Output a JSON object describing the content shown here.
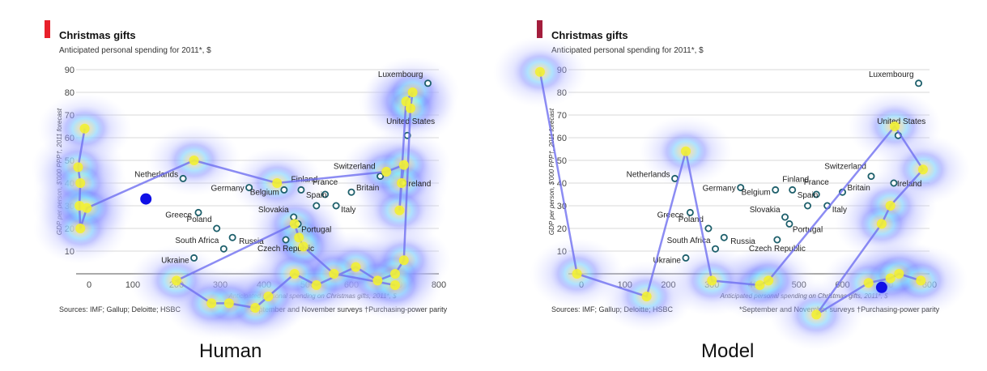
{
  "captions": {
    "left": "Human",
    "right": "Model"
  },
  "colors": {
    "accent_left": "#e8202b",
    "accent_right": "#a31d3c",
    "marker": "#1d5f6b",
    "gaze_line": "#6f6ff0",
    "fixation": "#f2f233",
    "start_dot": "#1010e6",
    "grid": "#d8d8d8"
  },
  "chart_data": [
    {
      "type": "scatter",
      "panel": "Human",
      "title": "Christmas gifts",
      "subtitle": "Anticipated personal spending for 2011*, $",
      "xlabel": "Anticipated personal spending on Christmas gifts, 2011*, $",
      "ylabel": "GDP per person, $'000 PPP†, 2011 forecast",
      "xlim": [
        -20,
        830
      ],
      "ylim": [
        -5,
        95
      ],
      "x_ticks": [
        0,
        100,
        200,
        300,
        400,
        500,
        600,
        700,
        800
      ],
      "y_ticks": [
        10,
        20,
        30,
        40,
        50,
        60,
        70,
        80,
        90
      ],
      "source": "Sources: IMF; Gallup; Deloitte; HSBC",
      "footnote": "*September and November surveys   †Purchasing-power parity",
      "points": [
        {
          "label": "Luxembourg",
          "x": 775,
          "y": 84
        },
        {
          "label": "United States",
          "x": 728,
          "y": 61
        },
        {
          "label": "Switzerland",
          "x": 666,
          "y": 43
        },
        {
          "label": "Ireland",
          "x": 718,
          "y": 40
        },
        {
          "label": "Netherlands",
          "x": 215,
          "y": 42
        },
        {
          "label": "Finland",
          "x": 485,
          "y": 37
        },
        {
          "label": "France",
          "x": 540,
          "y": 35
        },
        {
          "label": "Britain",
          "x": 600,
          "y": 36
        },
        {
          "label": "Germany",
          "x": 366,
          "y": 38
        },
        {
          "label": "Belgium",
          "x": 446,
          "y": 37
        },
        {
          "label": "Spain",
          "x": 520,
          "y": 30
        },
        {
          "label": "Italy",
          "x": 565,
          "y": 30
        },
        {
          "label": "Greece",
          "x": 250,
          "y": 27
        },
        {
          "label": "Slovakia",
          "x": 468,
          "y": 25
        },
        {
          "label": "Portugal",
          "x": 478,
          "y": 22
        },
        {
          "label": "Poland",
          "x": 292,
          "y": 20
        },
        {
          "label": "Russia",
          "x": 328,
          "y": 16
        },
        {
          "label": "Czech Republic",
          "x": 450,
          "y": 15
        },
        {
          "label": "South Africa",
          "x": 308,
          "y": 11
        },
        {
          "label": "Ukraine",
          "x": 240,
          "y": 7
        }
      ]
    },
    {
      "type": "scatter",
      "panel": "Model",
      "title": "Christmas gifts",
      "subtitle": "Anticipated personal spending for 2011*, $",
      "xlabel": "Anticipated personal spending on Christmas gifts, 2011*, $",
      "ylabel": "GDP per person, $'000 PPP†, 2011 forecast",
      "xlim": [
        -20,
        830
      ],
      "ylim": [
        -5,
        95
      ],
      "x_ticks": [
        0,
        100,
        200,
        300,
        400,
        500,
        600,
        700,
        800
      ],
      "y_ticks": [
        10,
        20,
        30,
        40,
        50,
        60,
        70,
        80,
        90
      ],
      "source": "Sources: IMF; Gallup; Deloitte; HSBC",
      "footnote": "*September and November surveys   †Purchasing-power parity",
      "points": [
        {
          "label": "Luxembourg",
          "x": 775,
          "y": 84
        },
        {
          "label": "United States",
          "x": 728,
          "y": 61
        },
        {
          "label": "Switzerland",
          "x": 666,
          "y": 43
        },
        {
          "label": "Ireland",
          "x": 718,
          "y": 40
        },
        {
          "label": "Netherlands",
          "x": 215,
          "y": 42
        },
        {
          "label": "Finland",
          "x": 485,
          "y": 37
        },
        {
          "label": "France",
          "x": 540,
          "y": 35
        },
        {
          "label": "Britain",
          "x": 600,
          "y": 36
        },
        {
          "label": "Germany",
          "x": 366,
          "y": 38
        },
        {
          "label": "Belgium",
          "x": 446,
          "y": 37
        },
        {
          "label": "Spain",
          "x": 520,
          "y": 30
        },
        {
          "label": "Italy",
          "x": 565,
          "y": 30
        },
        {
          "label": "Greece",
          "x": 250,
          "y": 27
        },
        {
          "label": "Slovakia",
          "x": 468,
          "y": 25
        },
        {
          "label": "Portugal",
          "x": 478,
          "y": 22
        },
        {
          "label": "Poland",
          "x": 292,
          "y": 20
        },
        {
          "label": "Russia",
          "x": 328,
          "y": 16
        },
        {
          "label": "Czech Republic",
          "x": 450,
          "y": 15
        },
        {
          "label": "South Africa",
          "x": 308,
          "y": 11
        },
        {
          "label": "Ukraine",
          "x": 240,
          "y": 7
        }
      ]
    }
  ],
  "gaze": {
    "human": {
      "fixations": [
        [
          -10,
          64
        ],
        [
          -25,
          47
        ],
        [
          -20,
          40
        ],
        [
          -22,
          30
        ],
        [
          -20,
          20
        ],
        [
          -5,
          29
        ],
        [
          240,
          50
        ],
        [
          430,
          40
        ],
        [
          680,
          45
        ],
        [
          720,
          48
        ],
        [
          715,
          40
        ],
        [
          710,
          28
        ],
        [
          725,
          76
        ],
        [
          740,
          80
        ],
        [
          735,
          73
        ],
        [
          720,
          6
        ],
        [
          700,
          0
        ],
        [
          660,
          -3
        ],
        [
          610,
          3
        ],
        [
          520,
          -5
        ],
        [
          470,
          0
        ],
        [
          410,
          -10
        ],
        [
          380,
          -15
        ],
        [
          320,
          -13
        ],
        [
          280,
          -13
        ],
        [
          200,
          -3
        ],
        [
          470,
          22
        ],
        [
          480,
          16
        ],
        [
          490,
          12
        ],
        [
          560,
          0
        ],
        [
          700,
          -5
        ]
      ],
      "start": [
        130,
        33
      ]
    },
    "model": {
      "fixations": [
        [
          -95,
          89
        ],
        [
          -10,
          0
        ],
        [
          150,
          -10
        ],
        [
          240,
          54
        ],
        [
          300,
          -3
        ],
        [
          410,
          -5
        ],
        [
          430,
          -3
        ],
        [
          720,
          65
        ],
        [
          785,
          46
        ],
        [
          710,
          30
        ],
        [
          690,
          22
        ],
        [
          540,
          -18
        ],
        [
          660,
          -4
        ],
        [
          710,
          -2
        ],
        [
          730,
          0
        ],
        [
          780,
          -3
        ]
      ],
      "start": [
        690,
        -6
      ]
    }
  }
}
